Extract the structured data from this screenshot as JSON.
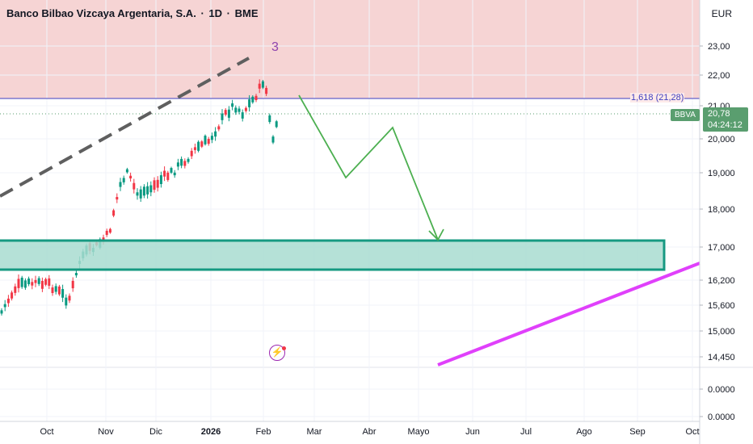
{
  "header": {
    "title": "Banco Bilbao Vizcaya Argentaria, S.A.",
    "separator": "·",
    "interval": "1D",
    "exchange": "BME",
    "currency": "EUR"
  },
  "price_tag": {
    "symbol": "BBVA",
    "price": "20,78",
    "countdown": "04:24:12",
    "color": "#5a9e6f"
  },
  "annotations": {
    "wave_label": "3",
    "fib_label": "1,618 (21,28)",
    "alert_icon": "lightning-alert-icon"
  },
  "colors": {
    "resistance_zone": "#f4cccc",
    "support_box_fill": "#a8dcd0",
    "support_box_stroke": "#169981",
    "trend_dashed": "#5f5f5f",
    "forecast_path": "#4caf50",
    "support_trendline": "#e040fb",
    "fib_line": "#3f3fbf",
    "candle_up": "#089981",
    "candle_down": "#f23645"
  },
  "chart_data": {
    "type": "candlestick",
    "x_labels": [
      "Oct",
      "Nov",
      "Dic",
      "2026",
      "Feb",
      "Mar",
      "Abr",
      "Mayo",
      "Jun",
      "Jul",
      "Ago",
      "Sep",
      "Oct"
    ],
    "y_labels": [
      "23,00",
      "22,00",
      "21,00",
      "20,000",
      "19,000",
      "18,000",
      "17,000",
      "16,200",
      "15,600",
      "15,000",
      "14,450",
      "0.0000",
      "0.0000"
    ],
    "y_scale": "log",
    "resistance_zone": [
      21.28,
      24.5
    ],
    "fib_extension": {
      "ratio": "1,618",
      "value": 21.28
    },
    "support_zone": [
      16.35,
      17.15
    ],
    "last_price": 20.78,
    "wave_count": "3",
    "price_series": [
      {
        "month": "Oct",
        "close": 15.8
      },
      {
        "month": "Nov",
        "close": 16.9
      },
      {
        "month": "Dic",
        "close": 18.6
      },
      {
        "month": "2026",
        "close": 20.2
      },
      {
        "month": "Feb",
        "close": 20.78
      }
    ]
  }
}
